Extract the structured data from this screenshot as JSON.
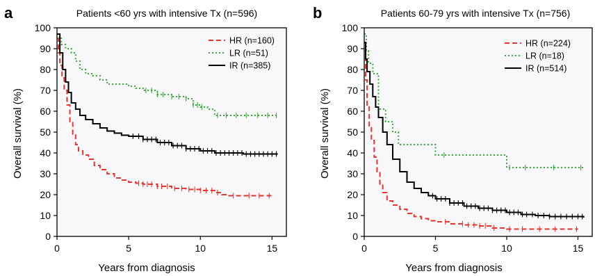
{
  "chart_data": [
    {
      "panel": "a",
      "type": "line",
      "title": "Patients <60 yrs with intensive Tx (n=596)",
      "xlabel": "Years from diagnosis",
      "ylabel": "Overall survival (%)",
      "xlim": [
        0,
        16
      ],
      "ylim": [
        0,
        100
      ],
      "xticks": [
        0,
        5,
        10,
        15
      ],
      "yticks": [
        0,
        10,
        20,
        30,
        40,
        50,
        60,
        70,
        80,
        90,
        100
      ],
      "legend_position": "top-right",
      "series": [
        {
          "name": "HR (n=160)",
          "color": "#e8342a",
          "dash": "dashed",
          "x": [
            0,
            0.1,
            0.2,
            0.35,
            0.5,
            0.7,
            0.9,
            1.1,
            1.3,
            1.5,
            1.8,
            2.2,
            2.6,
            3.0,
            3.5,
            4.0,
            4.5,
            5.0,
            5.5,
            6.0,
            7.0,
            8.0,
            9.0,
            10.0,
            11.0,
            11.5,
            12.0,
            13.0,
            14.0,
            15.0
          ],
          "y": [
            95,
            88,
            82,
            76,
            70,
            63,
            55,
            49,
            44,
            41,
            39,
            37,
            34,
            32,
            30,
            28,
            27,
            26,
            25.5,
            25,
            24,
            23,
            22.5,
            22,
            21,
            20,
            19.5,
            19.5,
            19.5,
            19.5
          ],
          "censor_x": [
            5.7,
            6.0,
            6.3,
            6.6,
            7.0,
            7.3,
            7.7,
            8.2,
            8.7,
            9.2,
            9.6,
            10.0,
            10.4,
            10.8,
            11.2,
            12.3,
            13.4,
            14.1,
            14.8
          ]
        },
        {
          "name": "LR (n=51)",
          "color": "#33a833",
          "dash": "dotted",
          "x": [
            0,
            0.3,
            0.6,
            1.0,
            1.3,
            1.6,
            2.0,
            2.5,
            3.0,
            3.5,
            4.0,
            5.0,
            5.5,
            6.0,
            7.0,
            8.0,
            9.0,
            9.5,
            10.0,
            10.5,
            11.0,
            12.0,
            13.0,
            14.0,
            15.4
          ],
          "y": [
            95,
            92,
            90,
            88,
            84,
            80,
            78,
            77,
            75,
            73,
            73,
            72,
            71,
            70,
            68,
            67,
            66,
            63,
            62,
            61,
            58,
            58,
            58,
            58,
            58
          ],
          "censor_x": [
            6.2,
            6.6,
            7.0,
            7.4,
            8.0,
            8.5,
            9.0,
            9.5,
            9.8,
            10.1,
            11.2,
            11.8,
            12.5,
            13.2,
            14.0,
            14.7,
            15.3
          ]
        },
        {
          "name": "IR (n=385)",
          "color": "#000000",
          "dash": "solid",
          "x": [
            0,
            0.2,
            0.4,
            0.6,
            0.8,
            1.0,
            1.3,
            1.6,
            2.0,
            2.5,
            3.0,
            3.5,
            4.0,
            4.5,
            5.0,
            6.0,
            7.0,
            8.0,
            9.0,
            10.0,
            11.0,
            12.0,
            13.0,
            14.0,
            15.4
          ],
          "y": [
            97,
            88,
            80,
            74,
            69,
            64,
            61,
            58,
            56,
            54,
            52,
            50.5,
            49.5,
            48.5,
            48,
            46.5,
            45,
            43.5,
            42,
            41,
            40,
            40,
            39.5,
            39.5,
            39.5
          ],
          "censor_x": [
            5.3,
            5.7,
            6.0,
            6.3,
            6.6,
            6.9,
            7.2,
            7.5,
            7.8,
            8.1,
            8.4,
            8.7,
            9.0,
            9.3,
            9.6,
            9.9,
            10.2,
            10.5,
            10.8,
            11.1,
            11.4,
            11.7,
            12.0,
            12.3,
            12.6,
            12.9,
            13.2,
            13.5,
            13.8,
            14.1,
            14.4,
            14.7,
            15.0,
            15.3
          ]
        }
      ],
      "legend_entries": [
        "HR (n=160)",
        "LR (n=51)",
        "IR (n=385)"
      ]
    },
    {
      "panel": "b",
      "type": "line",
      "title": "Patients 60-79 yrs with intensive Tx (n=756)",
      "xlabel": "Years from diagnosis",
      "ylabel": "Overall survival (%)",
      "xlim": [
        0,
        16
      ],
      "ylim": [
        0,
        100
      ],
      "xticks": [
        0,
        5,
        10,
        15
      ],
      "yticks": [
        0,
        10,
        20,
        30,
        40,
        50,
        60,
        70,
        80,
        90,
        100
      ],
      "legend_position": "top-right",
      "series": [
        {
          "name": "HR (n=224)",
          "color": "#e8342a",
          "dash": "dashed",
          "x": [
            0,
            0.1,
            0.2,
            0.35,
            0.5,
            0.7,
            0.9,
            1.1,
            1.3,
            1.6,
            2.0,
            2.5,
            3.0,
            3.5,
            4.0,
            4.5,
            5.0,
            6.0,
            7.0,
            8.0,
            9.0,
            10.0,
            11.0,
            12.0,
            13.0,
            14.0,
            15.0
          ],
          "y": [
            93,
            75,
            63,
            53,
            46,
            38,
            31,
            25,
            21,
            17,
            15,
            13,
            11,
            9.5,
            8.5,
            7.5,
            7,
            6,
            5.5,
            5,
            4,
            3.5,
            3.5,
            3.5,
            3.5,
            3.5,
            3.5
          ],
          "censor_x": [
            5.7,
            6.9,
            7.3,
            7.7,
            8.1,
            8.5,
            9.1,
            10.2,
            11.1,
            12.3,
            13.4,
            14.9
          ]
        },
        {
          "name": "LR (n=18)",
          "color": "#33a833",
          "dash": "dotted",
          "x": [
            0,
            0.15,
            0.3,
            0.6,
            1.0,
            1.5,
            2.0,
            2.4,
            3.0,
            4.0,
            5.0,
            5.5,
            6.0,
            8.0,
            9.9,
            10.0,
            11.0,
            12.0,
            13.0,
            14.0,
            15.4
          ],
          "y": [
            97,
            89,
            83,
            78,
            61,
            55,
            50,
            44,
            44,
            44,
            39,
            39,
            39,
            39,
            39,
            33,
            33,
            33,
            33,
            33,
            33
          ],
          "censor_x": [
            5.6,
            10.2,
            11.3,
            13.3,
            15.2
          ]
        },
        {
          "name": "IR (n=514)",
          "color": "#000000",
          "dash": "solid",
          "x": [
            0,
            0.1,
            0.2,
            0.4,
            0.6,
            0.8,
            1.0,
            1.3,
            1.6,
            2.0,
            2.5,
            3.0,
            3.5,
            4.0,
            4.5,
            5.0,
            6.0,
            7.0,
            8.0,
            9.0,
            10.0,
            11.0,
            12.0,
            13.0,
            14.0,
            15.4
          ],
          "y": [
            93,
            85,
            79,
            73,
            67,
            62,
            57,
            50,
            44,
            37,
            31,
            26,
            23,
            21,
            19.5,
            18,
            16,
            14.5,
            13.5,
            12.5,
            11.5,
            10.5,
            10,
            9.5,
            9.5,
            9
          ],
          "censor_x": [
            4.8,
            5.1,
            5.4,
            5.7,
            6.0,
            6.3,
            6.6,
            6.9,
            7.2,
            7.5,
            7.8,
            8.1,
            8.4,
            8.7,
            9.0,
            9.3,
            9.6,
            9.9,
            10.2,
            10.5,
            10.8,
            11.1,
            11.4,
            11.8,
            12.2,
            12.6,
            13.0,
            13.4,
            13.8,
            14.2,
            14.6,
            15.0,
            15.3
          ]
        }
      ],
      "legend_entries": [
        "HR (n=224)",
        "LR (n=18)",
        "IR (n=514)"
      ]
    }
  ]
}
